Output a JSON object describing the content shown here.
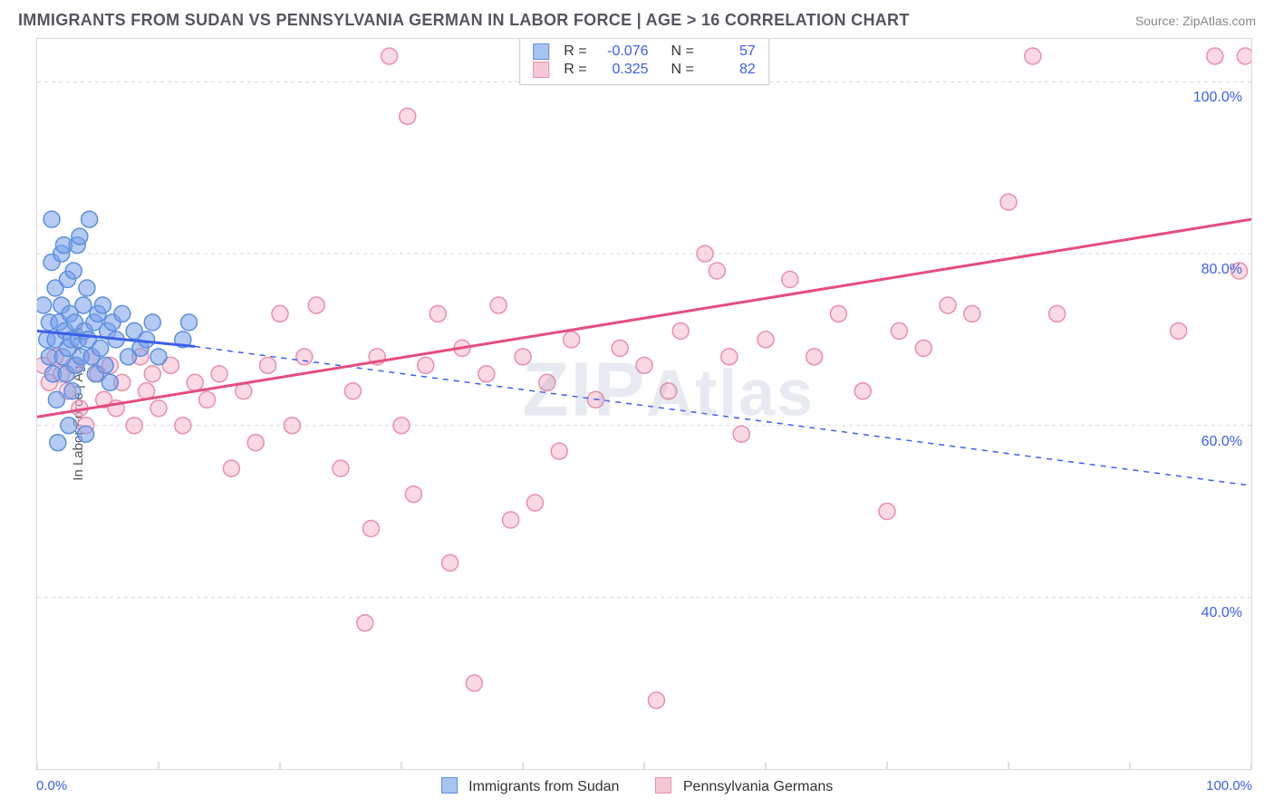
{
  "title": "IMMIGRANTS FROM SUDAN VS PENNSYLVANIA GERMAN IN LABOR FORCE | AGE > 16 CORRELATION CHART",
  "source": "Source: ZipAtlas.com",
  "ylabel": "In Labor Force | Age > 16",
  "watermark": "ZIPAtlas",
  "chart": {
    "type": "scatter",
    "xlim": [
      0,
      100
    ],
    "ylim": [
      20,
      105
    ],
    "xticks_minor": [
      0,
      10,
      20,
      30,
      40,
      50,
      60,
      70,
      80,
      90,
      100
    ],
    "yticks": [
      40,
      60,
      80,
      100
    ],
    "ytick_labels": [
      "40.0%",
      "60.0%",
      "80.0%",
      "100.0%"
    ],
    "x0_label": "0.0%",
    "x100_label": "100.0%",
    "background": "#ffffff",
    "grid_color": "#d8d8dc",
    "grid_dash": "4 4",
    "axis_color": "#bfbfc4",
    "marker_radius": 9,
    "marker_stroke_width": 1.5,
    "trend_line_width": 3
  },
  "series": {
    "sudan": {
      "label": "Immigrants from Sudan",
      "fill": "rgba(120,160,235,0.55)",
      "stroke": "#5b8fe0",
      "swatch_fill": "#a7c4f0",
      "swatch_border": "#5b8fe0",
      "R": "-0.076",
      "N": "57",
      "trend": {
        "x1": 0,
        "y1": 71,
        "x2": 13,
        "y2": 69.2,
        "ext_x2": 100,
        "ext_y2": 53,
        "color": "#3b5fea"
      },
      "points": [
        [
          0.5,
          74
        ],
        [
          0.8,
          70
        ],
        [
          1.0,
          72
        ],
        [
          1.0,
          68
        ],
        [
          1.2,
          79
        ],
        [
          1.2,
          84
        ],
        [
          1.3,
          66
        ],
        [
          1.5,
          76
        ],
        [
          1.5,
          70
        ],
        [
          1.6,
          63
        ],
        [
          1.7,
          58
        ],
        [
          1.8,
          72
        ],
        [
          2.0,
          80
        ],
        [
          2.0,
          74
        ],
        [
          2.1,
          68
        ],
        [
          2.2,
          81
        ],
        [
          2.3,
          71
        ],
        [
          2.4,
          66
        ],
        [
          2.5,
          77
        ],
        [
          2.5,
          69
        ],
        [
          2.6,
          60
        ],
        [
          2.7,
          73
        ],
        [
          2.8,
          70
        ],
        [
          2.9,
          64
        ],
        [
          3.0,
          78
        ],
        [
          3.1,
          72
        ],
        [
          3.2,
          67
        ],
        [
          3.3,
          81
        ],
        [
          3.4,
          70
        ],
        [
          3.5,
          82
        ],
        [
          3.6,
          68
        ],
        [
          3.8,
          74
        ],
        [
          3.9,
          71
        ],
        [
          4.0,
          59
        ],
        [
          4.1,
          76
        ],
        [
          4.2,
          70
        ],
        [
          4.3,
          84
        ],
        [
          4.5,
          68
        ],
        [
          4.7,
          72
        ],
        [
          4.8,
          66
        ],
        [
          5.0,
          73
        ],
        [
          5.2,
          69
        ],
        [
          5.4,
          74
        ],
        [
          5.6,
          67
        ],
        [
          5.8,
          71
        ],
        [
          6.0,
          65
        ],
        [
          6.2,
          72
        ],
        [
          6.5,
          70
        ],
        [
          7.0,
          73
        ],
        [
          7.5,
          68
        ],
        [
          8.0,
          71
        ],
        [
          8.5,
          69
        ],
        [
          9.0,
          70
        ],
        [
          9.5,
          72
        ],
        [
          10.0,
          68
        ],
        [
          12.0,
          70
        ],
        [
          12.5,
          72
        ]
      ]
    },
    "pennsylvania": {
      "label": "Pennsylvania Germans",
      "fill": "rgba(245,170,195,0.45)",
      "stroke": "#e98fa8",
      "swatch_fill": "#f6c8d6",
      "swatch_border": "#e98fa8",
      "R": "0.325",
      "N": "82",
      "trend": {
        "x1": 0,
        "y1": 61,
        "x2": 100,
        "y2": 84,
        "color": "#e64b82"
      },
      "points": [
        [
          0.5,
          67
        ],
        [
          1.0,
          65
        ],
        [
          1.5,
          68
        ],
        [
          2.0,
          66
        ],
        [
          2.5,
          64
        ],
        [
          3.0,
          67
        ],
        [
          3.5,
          62
        ],
        [
          4.0,
          60
        ],
        [
          4.5,
          68
        ],
        [
          5.0,
          66
        ],
        [
          5.5,
          63
        ],
        [
          6.0,
          67
        ],
        [
          6.5,
          62
        ],
        [
          7.0,
          65
        ],
        [
          8.0,
          60
        ],
        [
          8.5,
          68
        ],
        [
          9.0,
          64
        ],
        [
          9.5,
          66
        ],
        [
          10.0,
          62
        ],
        [
          11.0,
          67
        ],
        [
          12.0,
          60
        ],
        [
          13.0,
          65
        ],
        [
          14.0,
          63
        ],
        [
          15.0,
          66
        ],
        [
          16.0,
          55
        ],
        [
          17.0,
          64
        ],
        [
          18.0,
          58
        ],
        [
          19.0,
          67
        ],
        [
          20.0,
          73
        ],
        [
          21.0,
          60
        ],
        [
          22.0,
          68
        ],
        [
          23.0,
          74
        ],
        [
          25.0,
          55
        ],
        [
          26.0,
          64
        ],
        [
          27.0,
          37
        ],
        [
          27.5,
          48
        ],
        [
          28.0,
          68
        ],
        [
          29.0,
          103
        ],
        [
          30.0,
          60
        ],
        [
          30.5,
          96
        ],
        [
          31.0,
          52
        ],
        [
          32.0,
          67
        ],
        [
          33.0,
          73
        ],
        [
          34.0,
          44
        ],
        [
          35.0,
          69
        ],
        [
          36.0,
          30
        ],
        [
          37.0,
          66
        ],
        [
          38.0,
          74
        ],
        [
          39.0,
          49
        ],
        [
          40.0,
          68
        ],
        [
          41.0,
          51
        ],
        [
          42.0,
          65
        ],
        [
          43.0,
          57
        ],
        [
          44.0,
          70
        ],
        [
          45.0,
          101
        ],
        [
          46.0,
          63
        ],
        [
          48.0,
          69
        ],
        [
          50.0,
          67
        ],
        [
          51.0,
          28
        ],
        [
          52.0,
          64
        ],
        [
          53.0,
          71
        ],
        [
          55.0,
          80
        ],
        [
          56.0,
          78
        ],
        [
          57.0,
          68
        ],
        [
          58.0,
          59
        ],
        [
          60.0,
          70
        ],
        [
          62.0,
          77
        ],
        [
          64.0,
          68
        ],
        [
          66.0,
          73
        ],
        [
          68.0,
          64
        ],
        [
          70.0,
          50
        ],
        [
          71.0,
          71
        ],
        [
          73.0,
          69
        ],
        [
          75.0,
          74
        ],
        [
          77.0,
          73
        ],
        [
          80.0,
          86
        ],
        [
          82.0,
          103
        ],
        [
          84.0,
          73
        ],
        [
          94.0,
          71
        ],
        [
          97.0,
          103
        ],
        [
          99.0,
          78
        ],
        [
          99.5,
          103
        ]
      ]
    }
  },
  "legend": {
    "r_label": "R =",
    "n_label": "N ="
  }
}
